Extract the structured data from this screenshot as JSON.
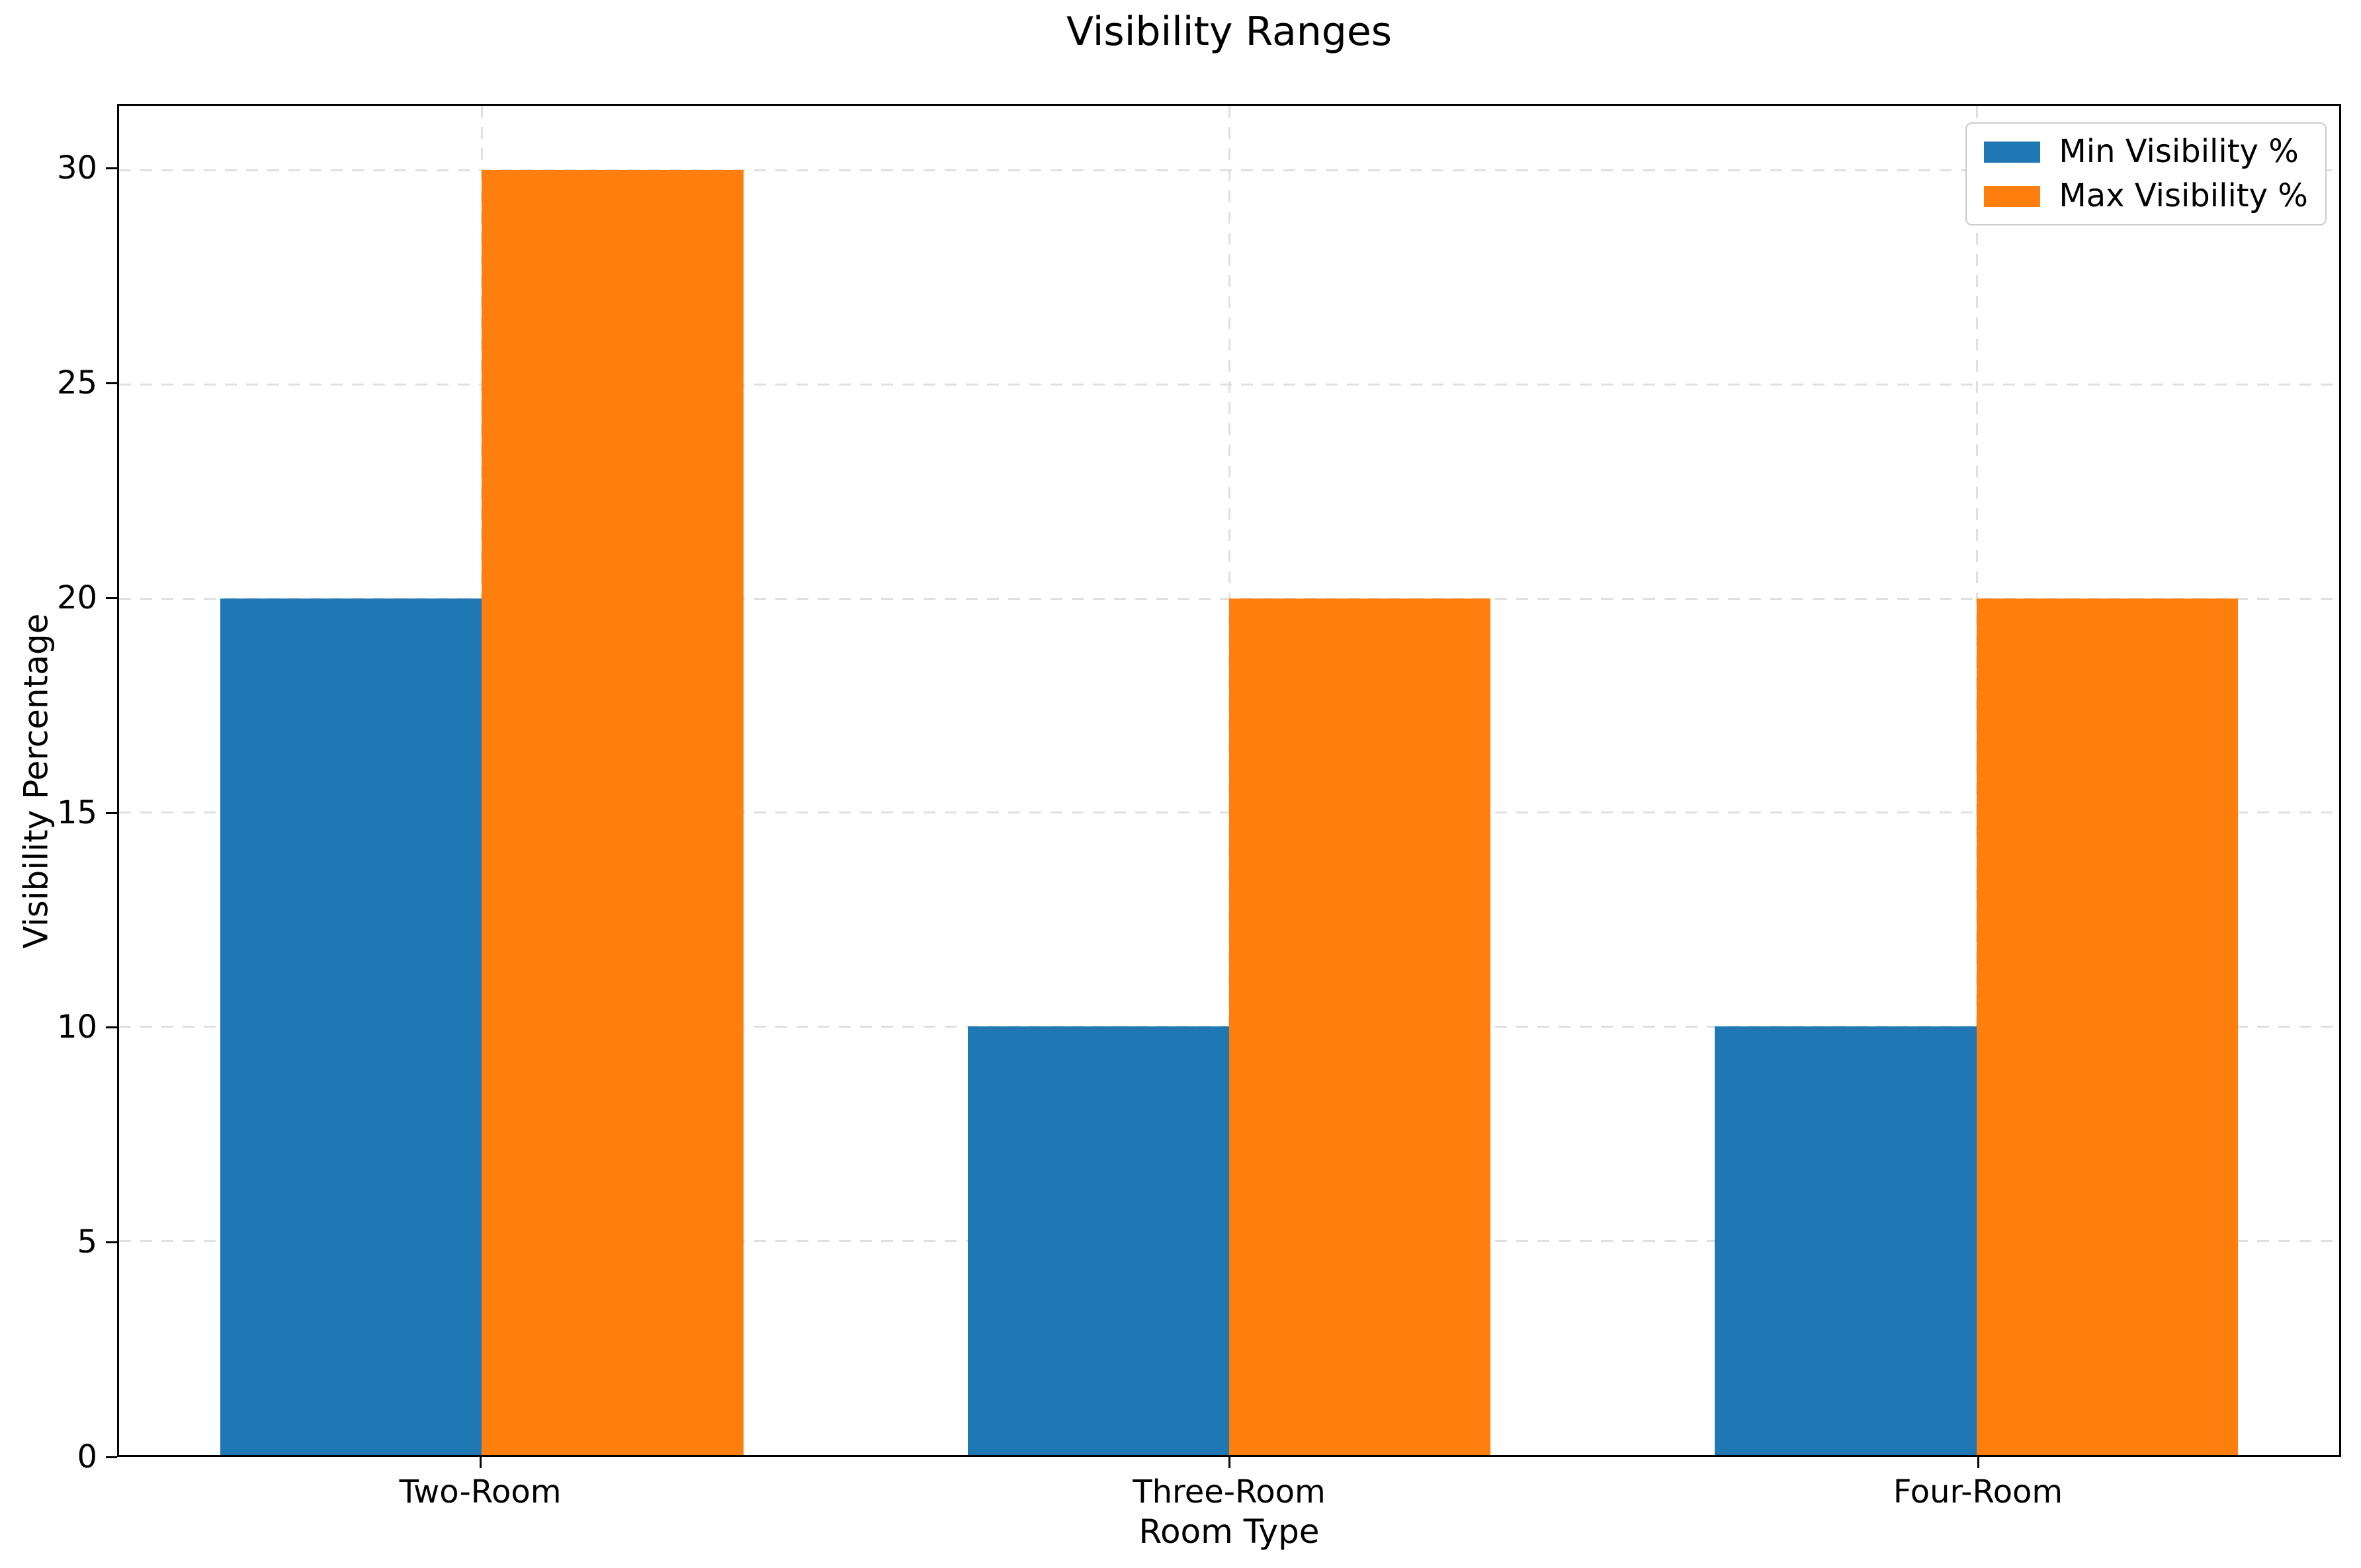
{
  "chart_data": {
    "type": "bar",
    "title": "Visibility Ranges",
    "xlabel": "Room Type",
    "ylabel": "Visibility Percentage",
    "categories": [
      "Two-Room",
      "Three-Room",
      "Four-Room"
    ],
    "x": [
      0,
      1,
      2
    ],
    "series": [
      {
        "name": "Min Visibility %",
        "color": "#1f77b4",
        "values": [
          20,
          10,
          10
        ]
      },
      {
        "name": "Max Visibility %",
        "color": "#ff7f0e",
        "values": [
          30,
          20,
          20
        ]
      }
    ],
    "yticks": [
      0,
      5,
      10,
      15,
      20,
      25,
      30
    ],
    "ylim": [
      0,
      31.5
    ],
    "xlim": [
      -0.485,
      2.485
    ],
    "bar_width": 0.35,
    "grid": {
      "style": "dashed",
      "axes": "both",
      "behind_bars": true
    },
    "legend_position": "upper-right",
    "colors": {
      "background": "#ffffff",
      "axis": "#000000",
      "grid": "#e0e0e0",
      "legend_border": "#cccccc",
      "text": "#000000"
    }
  }
}
